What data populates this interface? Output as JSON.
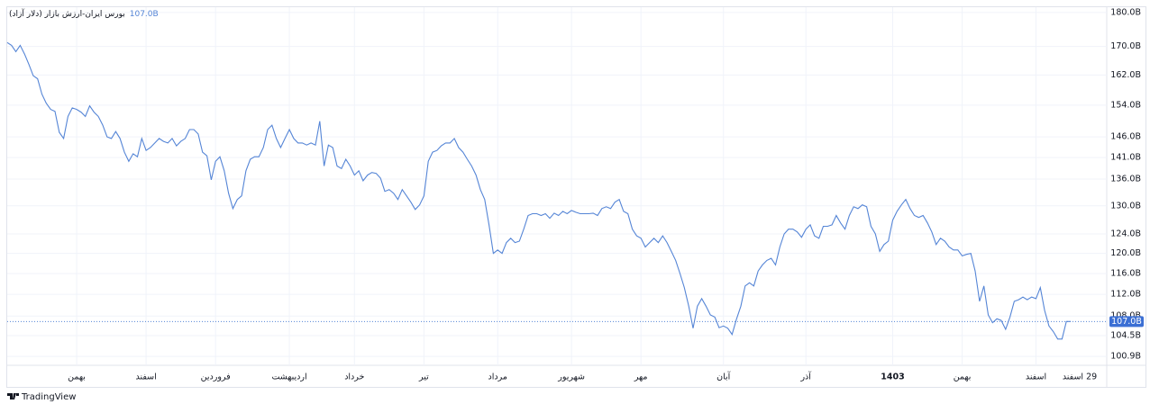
{
  "chart_data": {
    "type": "line",
    "title": "بورس ایران-ارزش بازار (دلار آزاد)",
    "last_value_label": "107.0B",
    "end_label": "29 اسفند",
    "brand": "TradingView",
    "color": "#5585d6",
    "log_scale": true,
    "grid": true,
    "ylim": [
      99.4,
      181.6
    ],
    "yticks": [
      {
        "value": 180,
        "label": "180.0B"
      },
      {
        "value": 170,
        "label": "170.0B"
      },
      {
        "value": 162,
        "label": "162.0B"
      },
      {
        "value": 154,
        "label": "154.0B"
      },
      {
        "value": 146,
        "label": "146.0B"
      },
      {
        "value": 141,
        "label": "141.0B"
      },
      {
        "value": 136,
        "label": "136.0B"
      },
      {
        "value": 130,
        "label": "130.0B"
      },
      {
        "value": 124,
        "label": "124.0B"
      },
      {
        "value": 120,
        "label": "120.0B"
      },
      {
        "value": 116,
        "label": "116.0B"
      },
      {
        "value": 112,
        "label": "112.0B"
      },
      {
        "value": 108,
        "label": "108.0B"
      },
      {
        "value": 104.5,
        "label": "104.5B"
      },
      {
        "value": 100.9,
        "label": "100.9B"
      }
    ],
    "categories": [
      null,
      null,
      null,
      null,
      null,
      null,
      null,
      null,
      null,
      null,
      null,
      null,
      null,
      null,
      null,
      null,
      "بهمن",
      null,
      null,
      null,
      null,
      null,
      null,
      null,
      null,
      null,
      null,
      null,
      null,
      null,
      null,
      null,
      "اسفند",
      null,
      null,
      null,
      null,
      null,
      null,
      null,
      null,
      null,
      null,
      null,
      null,
      null,
      null,
      null,
      "فروردین",
      null,
      null,
      null,
      null,
      null,
      null,
      null,
      null,
      null,
      null,
      null,
      null,
      null,
      null,
      null,
      null,
      "اردیبهشت",
      null,
      null,
      null,
      null,
      null,
      null,
      null,
      null,
      null,
      null,
      null,
      null,
      null,
      null,
      "خرداد",
      null,
      null,
      null,
      null,
      null,
      null,
      null,
      null,
      null,
      null,
      null,
      null,
      null,
      null,
      null,
      "تیر",
      null,
      null,
      null,
      null,
      null,
      null,
      null,
      null,
      null,
      null,
      null,
      null,
      null,
      null,
      null,
      null,
      "مرداد",
      null,
      null,
      null,
      null,
      null,
      null,
      null,
      null,
      null,
      null,
      null,
      null,
      null,
      null,
      null,
      null,
      "شهریور",
      null,
      null,
      null,
      null,
      null,
      null,
      null,
      null,
      null,
      null,
      null,
      null,
      null,
      null,
      null,
      "مهر",
      null,
      null,
      null,
      null,
      null,
      null,
      null,
      null,
      null,
      null,
      null,
      null,
      null,
      null,
      null,
      null,
      null,
      null,
      "آبان",
      null,
      null,
      null,
      null,
      null,
      null,
      null,
      null,
      null,
      null,
      null,
      null,
      null,
      null,
      null,
      null,
      null,
      null,
      "آذر",
      null,
      null,
      null,
      null,
      null,
      null,
      null,
      null,
      null,
      null,
      null,
      null,
      null,
      null,
      null,
      null,
      null,
      null,
      null,
      "1403",
      null,
      null,
      null,
      null,
      null,
      null,
      null,
      null,
      null,
      null,
      null,
      null,
      null,
      null,
      null,
      "بهمن",
      null,
      null,
      null,
      null,
      null,
      null,
      null,
      null,
      null,
      null,
      null,
      null,
      null,
      null,
      null,
      null,
      "اسفند",
      null,
      null,
      null,
      null,
      null,
      null,
      null,
      null
    ],
    "values": [
      171.1,
      170.3,
      168.5,
      170.3,
      167.8,
      164.9,
      161.8,
      161.0,
      156.9,
      154.5,
      152.9,
      152.4,
      147.1,
      145.6,
      151.1,
      153.3,
      152.9,
      152.2,
      151.1,
      153.8,
      152.2,
      151.1,
      148.9,
      146.0,
      145.6,
      147.3,
      145.6,
      142.3,
      140.1,
      141.9,
      141.2,
      145.6,
      142.7,
      143.4,
      144.5,
      145.6,
      144.9,
      144.5,
      145.6,
      143.8,
      144.9,
      145.6,
      147.8,
      147.8,
      146.7,
      142.3,
      141.4,
      135.8,
      140.1,
      141.2,
      137.9,
      132.8,
      129.4,
      131.4,
      132.2,
      137.9,
      140.6,
      141.2,
      141.2,
      143.4,
      147.8,
      148.9,
      145.6,
      143.4,
      145.6,
      147.8,
      145.6,
      144.5,
      144.5,
      144.0,
      144.5,
      144.0,
      149.9,
      139.0,
      144.0,
      143.4,
      139.0,
      138.4,
      140.6,
      139.0,
      136.9,
      137.9,
      135.6,
      136.9,
      137.5,
      137.3,
      136.2,
      133.2,
      133.6,
      132.8,
      131.4,
      133.6,
      132.2,
      130.8,
      129.2,
      130.2,
      132.2,
      140.1,
      142.3,
      142.7,
      143.8,
      144.5,
      144.5,
      145.6,
      143.4,
      142.3,
      140.6,
      139.0,
      136.9,
      133.6,
      131.4,
      125.9,
      120.0,
      120.7,
      120.0,
      122.2,
      123.1,
      122.2,
      122.5,
      125.0,
      127.9,
      128.3,
      128.3,
      127.9,
      128.3,
      127.3,
      128.4,
      127.9,
      128.8,
      128.3,
      129.0,
      128.6,
      128.3,
      128.3,
      128.3,
      128.4,
      127.9,
      129.4,
      129.8,
      129.4,
      130.8,
      131.4,
      128.8,
      128.3,
      125.0,
      123.6,
      123.1,
      121.3,
      122.2,
      123.1,
      122.2,
      123.6,
      122.2,
      120.4,
      118.6,
      116.0,
      113.3,
      109.8,
      105.8,
      109.8,
      111.2,
      109.8,
      108.2,
      107.8,
      105.9,
      106.2,
      105.8,
      104.7,
      107.4,
      109.8,
      113.6,
      114.2,
      113.6,
      116.5,
      117.7,
      118.6,
      119.0,
      117.7,
      121.3,
      124.0,
      125.0,
      125.0,
      124.4,
      123.3,
      125.0,
      125.9,
      123.6,
      123.1,
      125.6,
      125.6,
      125.9,
      127.9,
      126.3,
      125.0,
      127.9,
      129.8,
      129.4,
      130.2,
      129.8,
      125.6,
      124.0,
      120.4,
      121.8,
      122.5,
      126.9,
      128.8,
      130.2,
      131.4,
      129.4,
      127.9,
      127.5,
      127.9,
      126.3,
      124.4,
      121.8,
      123.1,
      122.5,
      121.3,
      120.7,
      120.7,
      119.5,
      119.8,
      120.0,
      116.5,
      110.7,
      113.6,
      108.2,
      106.8,
      107.5,
      107.2,
      105.6,
      107.8,
      110.7,
      111.0,
      111.5,
      111.0,
      111.5,
      111.2,
      113.3,
      109.0,
      106.2,
      105.2,
      103.9,
      103.9,
      107.0,
      107.0
    ]
  }
}
